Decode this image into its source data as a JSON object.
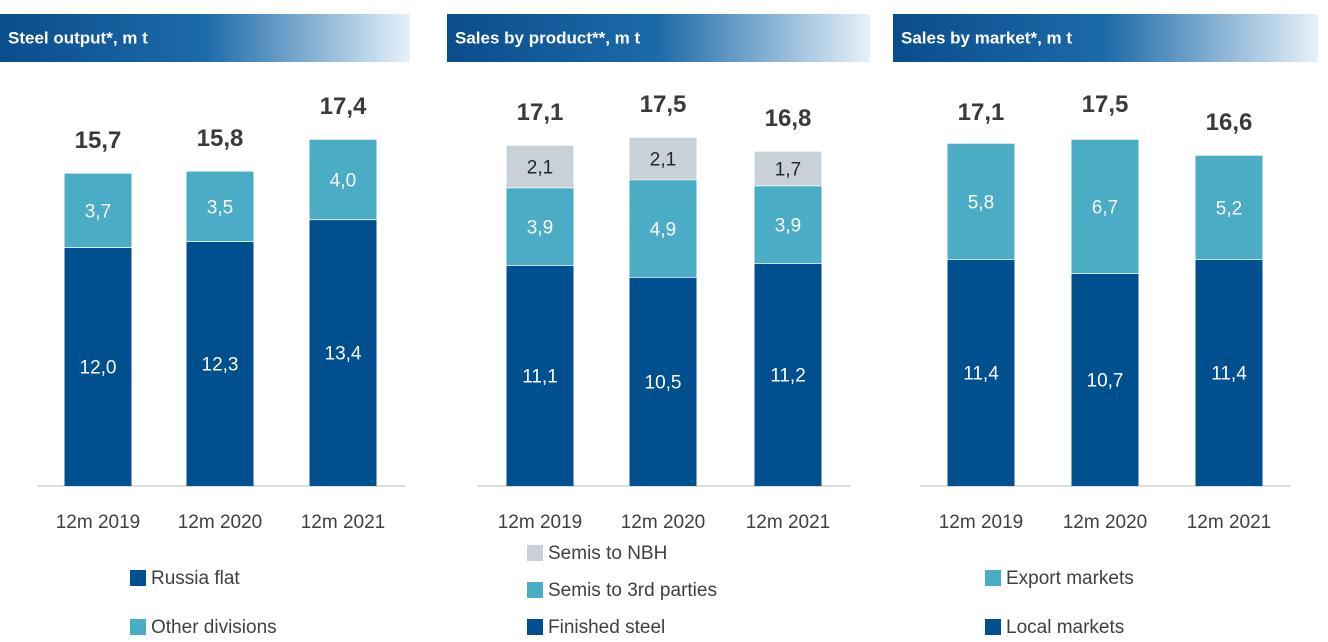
{
  "chart_data": [
    {
      "type": "bar",
      "stacked": true,
      "title": "Steel output*, m t",
      "categories": [
        "12m 2019",
        "12m 2020",
        "12m 2021"
      ],
      "series": [
        {
          "name": "Russia flat",
          "color": "#004f8f",
          "values": [
            12.0,
            12.3,
            13.4
          ],
          "value_labels": [
            "12,0",
            "12,3",
            "13,4"
          ]
        },
        {
          "name": "Other divisions",
          "color": "#4bacc6",
          "values": [
            3.7,
            3.5,
            4.0
          ],
          "value_labels": [
            "3,7",
            "3,5",
            "4,0"
          ]
        }
      ],
      "totals": [
        15.7,
        15.8,
        17.4
      ],
      "total_labels": [
        "15,7",
        "15,8",
        "17,4"
      ],
      "legend_reversed": false
    },
    {
      "type": "bar",
      "stacked": true,
      "title": "Sales by product**, m t",
      "categories": [
        "12m 2019",
        "12m 2020",
        "12m 2021"
      ],
      "series": [
        {
          "name": "Finished steel",
          "color": "#004f8f",
          "values": [
            11.1,
            10.5,
            11.2
          ],
          "value_labels": [
            "11,1",
            "10,5",
            "11,2"
          ]
        },
        {
          "name": "Semis to 3rd parties",
          "color": "#4bacc6",
          "values": [
            3.9,
            4.9,
            3.9
          ],
          "value_labels": [
            "3,9",
            "4,9",
            "3,9"
          ]
        },
        {
          "name": "Semis to NBH",
          "color": "#c9d1d8",
          "values": [
            2.1,
            2.1,
            1.7
          ],
          "value_labels": [
            "2,1",
            "2,1",
            "1,7"
          ]
        }
      ],
      "totals": [
        17.1,
        17.5,
        16.8
      ],
      "total_labels": [
        "17,1",
        "17,5",
        "16,8"
      ],
      "legend_reversed": true
    },
    {
      "type": "bar",
      "stacked": true,
      "title": "Sales by market*, m t",
      "categories": [
        "12m 2019",
        "12m 2020",
        "12m 2021"
      ],
      "series": [
        {
          "name": "Local markets",
          "color": "#004f8f",
          "values": [
            11.4,
            10.7,
            11.4
          ],
          "value_labels": [
            "11,4",
            "10,7",
            "11,4"
          ]
        },
        {
          "name": "Export markets",
          "color": "#4bacc6",
          "values": [
            5.8,
            6.7,
            5.2
          ],
          "value_labels": [
            "5,8",
            "6,7",
            "5,2"
          ]
        }
      ],
      "totals": [
        17.1,
        17.5,
        16.6
      ],
      "total_labels": [
        "17,1",
        "17,5",
        "16,6"
      ],
      "legend_reversed": true
    }
  ]
}
